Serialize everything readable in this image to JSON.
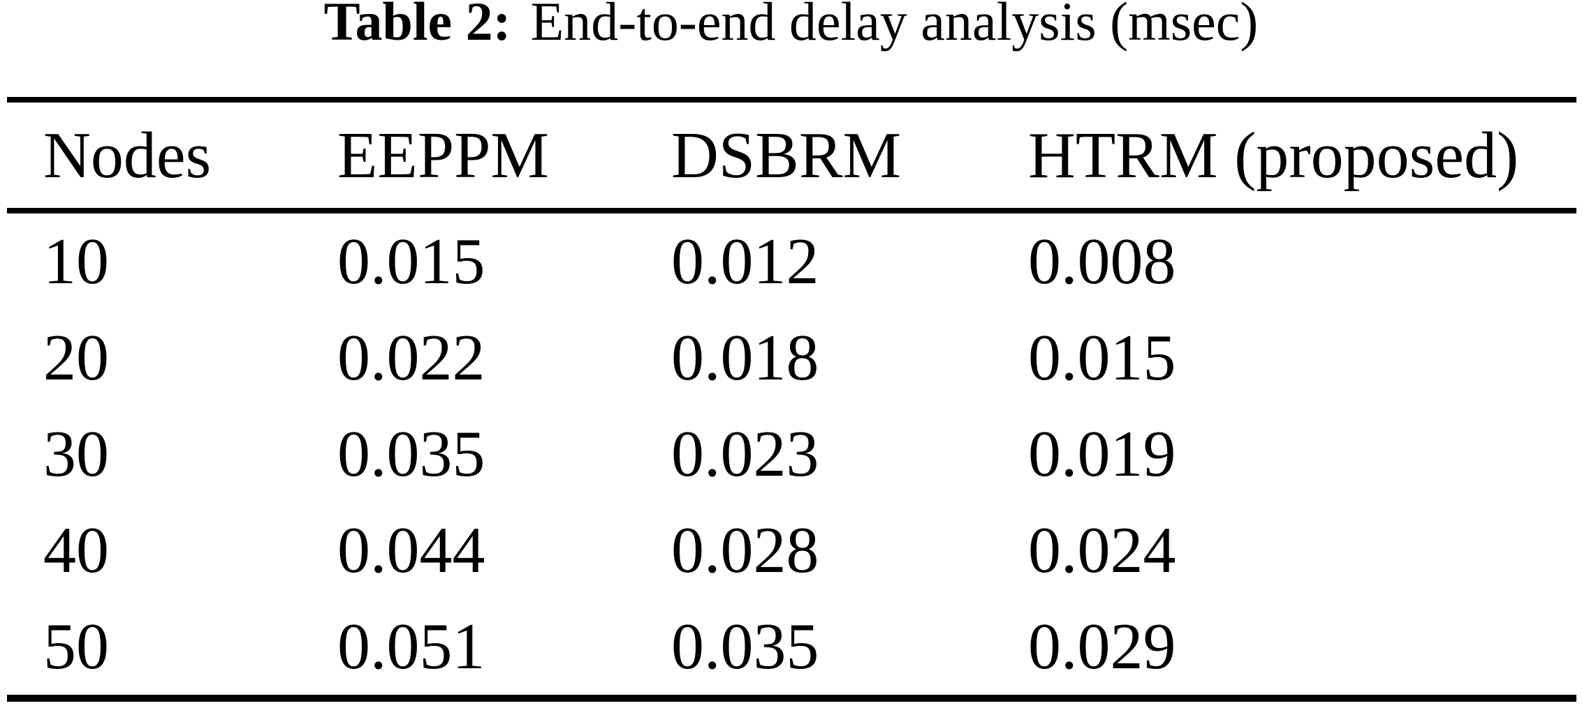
{
  "page": {
    "background_color": "#ffffff",
    "text_color": "#000000"
  },
  "caption": {
    "label": "Table 2:",
    "text": "End-to-end delay analysis (msec)"
  },
  "table": {
    "columns": [
      "Nodes",
      "EEPPM",
      "DSBRM",
      "HTRM (proposed)"
    ],
    "rows": [
      [
        "10",
        "0.015",
        "0.012",
        "0.008"
      ],
      [
        "20",
        "0.022",
        "0.018",
        "0.015"
      ],
      [
        "30",
        "0.035",
        "0.023",
        "0.019"
      ],
      [
        "40",
        "0.044",
        "0.028",
        "0.024"
      ],
      [
        "50",
        "0.051",
        "0.035",
        "0.029"
      ]
    ]
  }
}
